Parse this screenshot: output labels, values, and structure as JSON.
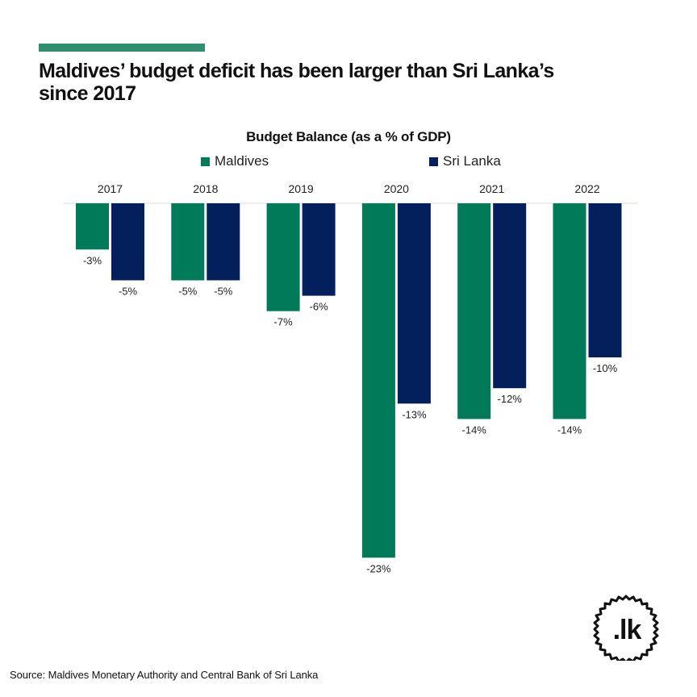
{
  "header": {
    "title": "Maldives’ budget deficit has been larger than Sri Lanka’s since 2017"
  },
  "colors": {
    "accent": "#2f8f6e",
    "maldives": "#017a5a",
    "srilanka": "#04205c"
  },
  "chart_data": {
    "type": "bar",
    "title": "Budget Balance (as a % of GDP)",
    "xlabel": "",
    "ylabel": "",
    "legend_position": "top-center",
    "grid": false,
    "categories": [
      "2017",
      "2018",
      "2019",
      "2020",
      "2021",
      "2022"
    ],
    "series": [
      {
        "name": "Maldives",
        "color": "#017a5a",
        "values": [
          -3,
          -5,
          -7,
          -23,
          -14,
          -14
        ],
        "labels": [
          "-3%",
          "-5%",
          "-7%",
          "-23%",
          "-14%",
          "-14%"
        ]
      },
      {
        "name": "Sri Lanka",
        "color": "#04205c",
        "values": [
          -5,
          -5,
          -6,
          -13,
          -12,
          -10
        ],
        "labels": [
          "-5%",
          "-5%",
          "-6%",
          "-13%",
          "-12%",
          "-10%"
        ]
      }
    ],
    "ylim": [
      -23,
      0
    ]
  },
  "footer": {
    "source": "Source: Maldives Monetary Authority and Central Bank of Sri Lanka",
    "logo_text": ".lk"
  }
}
